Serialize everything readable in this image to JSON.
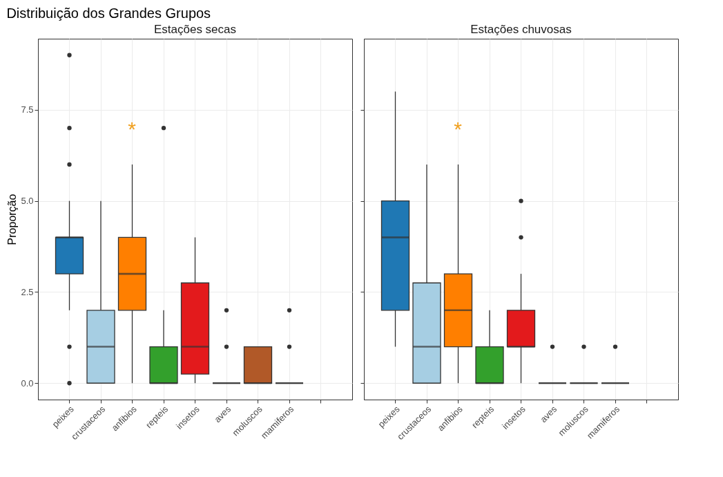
{
  "chart_data": [
    {
      "type": "box",
      "title": "Distribuição dos Grandes Grupos",
      "subtitle": "Estações secas",
      "ylabel": "Proporção",
      "categories": [
        "peixes",
        "crustaceos",
        "anfibios",
        "repteis",
        "insetos",
        "aves",
        "moluscos",
        "mamiferos",
        null
      ],
      "colors": [
        "#1f78b4",
        "#a6cee3",
        "#ff7f00",
        "#33a02c",
        "#e31a1c",
        "#333333",
        "#b15928",
        "#333333",
        null
      ],
      "boxes": [
        {
          "low": 2,
          "q1": 3,
          "median": 4,
          "q3": 4,
          "high": 5,
          "outliers": [
            9,
            7,
            6,
            1,
            0
          ]
        },
        {
          "low": 0,
          "q1": 0,
          "median": 1,
          "q3": 2,
          "high": 5
        },
        {
          "low": 0,
          "q1": 2,
          "median": 3,
          "q3": 4,
          "high": 6
        },
        {
          "low": 0,
          "q1": 0,
          "median": 0,
          "q3": 1,
          "high": 2,
          "outliers": [
            7
          ]
        },
        {
          "low": 0,
          "q1": 0.25,
          "median": 1,
          "q3": 2.75,
          "high": 4
        },
        {
          "low": 0,
          "q1": 0,
          "median": 0,
          "q3": 0,
          "high": 0,
          "outliers": [
            2,
            1
          ]
        },
        {
          "low": 0,
          "q1": 0,
          "median": 0,
          "q3": 1,
          "high": 1
        },
        {
          "low": 0,
          "q1": 0,
          "median": 0,
          "q3": 0,
          "high": 0,
          "outliers": [
            2,
            1
          ]
        },
        null
      ],
      "annotations": [
        "*"
      ],
      "ylim": [
        -0.45,
        9.45
      ],
      "yticks": [
        {
          "value": 0,
          "label": "0.0"
        },
        {
          "value": 2.5,
          "label": "2.5"
        },
        {
          "value": 5,
          "label": "5.0"
        },
        {
          "value": 7.5,
          "label": "7.5"
        }
      ],
      "grid": true
    },
    {
      "type": "box",
      "subtitle": "Estações chuvosas",
      "categories": [
        "peixes",
        "crustaceos",
        "anfibios",
        "repteis",
        "insetos",
        "aves",
        "moluscos",
        "mamiferos",
        null
      ],
      "colors": [
        "#1f78b4",
        "#a6cee3",
        "#ff7f00",
        "#33a02c",
        "#e31a1c",
        "#333333",
        "#333333",
        "#333333",
        null
      ],
      "boxes": [
        {
          "low": 1,
          "q1": 2,
          "median": 4,
          "q3": 5,
          "high": 8
        },
        {
          "low": 0,
          "q1": 0,
          "median": 1,
          "q3": 2.75,
          "high": 6
        },
        {
          "low": 0,
          "q1": 1,
          "median": 2,
          "q3": 3,
          "high": 6
        },
        {
          "low": 0,
          "q1": 0,
          "median": 0,
          "q3": 1,
          "high": 2
        },
        {
          "low": 0,
          "q1": 1,
          "median": 1,
          "q3": 2,
          "high": 3,
          "outliers": [
            5,
            4
          ]
        },
        {
          "low": 0,
          "q1": 0,
          "median": 0,
          "q3": 0,
          "high": 0,
          "outliers": [
            1
          ]
        },
        {
          "low": 0,
          "q1": 0,
          "median": 0,
          "q3": 0,
          "high": 0,
          "outliers": [
            1
          ]
        },
        {
          "low": 0,
          "q1": 0,
          "median": 0,
          "q3": 0,
          "high": 0,
          "outliers": [
            1
          ]
        },
        null
      ],
      "annotations": [
        "*"
      ],
      "ylim": [
        -0.45,
        9.45
      ],
      "yticks": [
        0,
        2.5,
        5,
        7.5
      ],
      "grid": true,
      "tick_labels": "x"
    }
  ]
}
